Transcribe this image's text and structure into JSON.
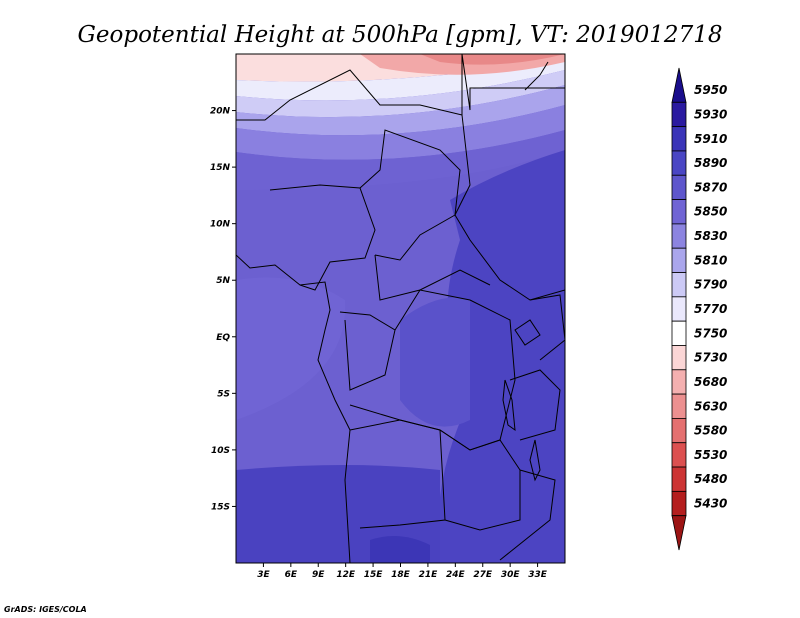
{
  "title": "Geopotential Height at 500hPa [gpm], VT: 2019012718",
  "credit": "GrADS: IGES/COLA",
  "map": {
    "lat_range": [
      -20,
      25
    ],
    "lon_range": [
      0,
      36
    ],
    "lat_ticks": [
      {
        "value": 20,
        "label": "20N"
      },
      {
        "value": 15,
        "label": "15N"
      },
      {
        "value": 10,
        "label": "10N"
      },
      {
        "value": 5,
        "label": "5N"
      },
      {
        "value": 0,
        "label": "EQ"
      },
      {
        "value": -5,
        "label": "5S"
      },
      {
        "value": -10,
        "label": "10S"
      },
      {
        "value": -15,
        "label": "15S"
      }
    ],
    "lon_ticks": [
      {
        "value": 3,
        "label": "3E"
      },
      {
        "value": 6,
        "label": "6E"
      },
      {
        "value": 9,
        "label": "9E"
      },
      {
        "value": 12,
        "label": "12E"
      },
      {
        "value": 15,
        "label": "15E"
      },
      {
        "value": 18,
        "label": "18E"
      },
      {
        "value": 21,
        "label": "21E"
      },
      {
        "value": 24,
        "label": "24E"
      },
      {
        "value": 27,
        "label": "27E"
      },
      {
        "value": 30,
        "label": "30E"
      },
      {
        "value": 33,
        "label": "33E"
      }
    ]
  },
  "colorbar": {
    "levels": [
      "5950",
      "5930",
      "5910",
      "5890",
      "5870",
      "5850",
      "5830",
      "5810",
      "5790",
      "5770",
      "5750",
      "5730",
      "5680",
      "5630",
      "5580",
      "5530",
      "5480",
      "5430"
    ],
    "colors": [
      "#1a0e8c",
      "#2a1aa0",
      "#3a34b8",
      "#4a46c4",
      "#5e56cc",
      "#7064d4",
      "#8c84e0",
      "#aaa6ec",
      "#cccaf6",
      "#eae8fc",
      "#ffffff",
      "#fbd6d6",
      "#f4b0b0",
      "#ec9090",
      "#e47070",
      "#dc5050",
      "#cc3434",
      "#b41e1e",
      "#9c1414"
    ]
  }
}
